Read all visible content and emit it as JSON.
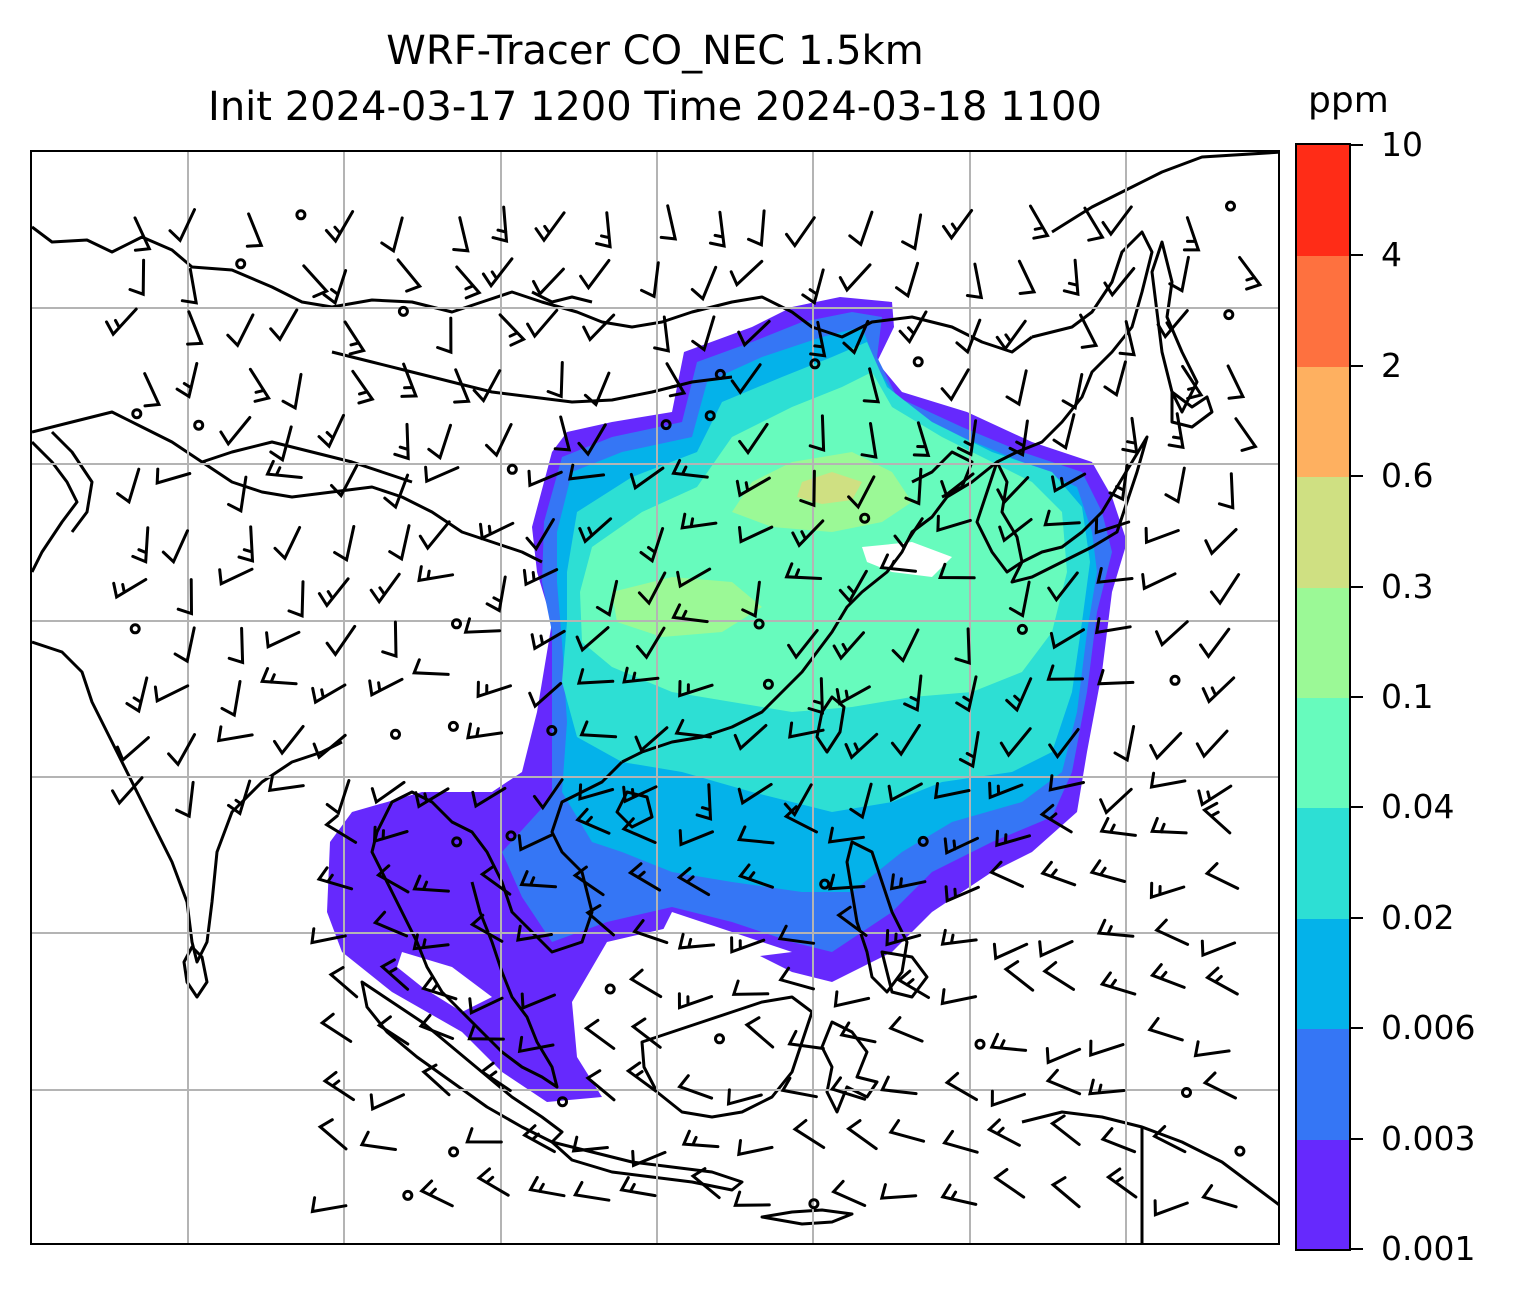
{
  "title": {
    "line1": "WRF-Tracer CO_NEC 1.5km",
    "line2": "Init 2024-03-17 1200 Time 2024-03-18 1100"
  },
  "colorbar": {
    "unit": "ppm",
    "levels": [
      "0.001",
      "0.003",
      "0.006",
      "0.02",
      "0.04",
      "0.1",
      "0.3",
      "0.6",
      "2",
      "4",
      "10"
    ],
    "colors": [
      "#6629fd",
      "#3576f5",
      "#04b2ea",
      "#2ddfd4",
      "#67fbbd",
      "#9bf996",
      "#cfe082",
      "#feb060",
      "#fe713f",
      "#ff2c17"
    ]
  },
  "map": {
    "coastline_color": "#000000",
    "grid_color": "#b4b4b4",
    "wind_barb_color": "#000000",
    "calm_marker": "circle"
  }
}
